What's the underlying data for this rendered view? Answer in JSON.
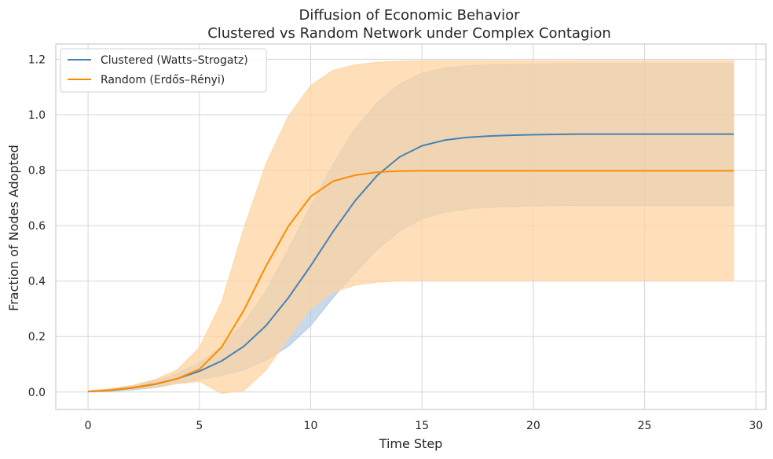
{
  "chart_data": {
    "type": "line",
    "title": "Diffusion of Economic Behavior",
    "subtitle": "Clustered vs Random Network under Complex Contagion",
    "xlabel": "Time Step",
    "ylabel": "Fraction of Nodes Adopted",
    "xlim": [
      -1.45,
      30.45
    ],
    "ylim": [
      -0.063,
      1.255
    ],
    "x_ticks": [
      "0",
      "5",
      "10",
      "15",
      "20",
      "25",
      "30"
    ],
    "y_ticks": [
      "0.0",
      "0.2",
      "0.4",
      "0.6",
      "0.8",
      "1.0",
      "1.2"
    ],
    "grid": true,
    "legend_position": "upper-left",
    "x": [
      0,
      1,
      2,
      3,
      4,
      5,
      6,
      7,
      8,
      9,
      10,
      11,
      12,
      13,
      14,
      15,
      16,
      17,
      18,
      19,
      20,
      21,
      22,
      23,
      24,
      25,
      26,
      27,
      28,
      29
    ],
    "series": [
      {
        "name": "Clustered (Watts–Strogatz)",
        "color": "#4682b4",
        "band_color": "#a9c5e1",
        "values": [
          0.002,
          0.006,
          0.015,
          0.028,
          0.048,
          0.075,
          0.112,
          0.165,
          0.24,
          0.34,
          0.455,
          0.578,
          0.69,
          0.782,
          0.848,
          0.888,
          0.908,
          0.918,
          0.923,
          0.926,
          0.928,
          0.929,
          0.93,
          0.93,
          0.93,
          0.93,
          0.93,
          0.93,
          0.93,
          0.93
        ],
        "lower": [
          0.0,
          0.002,
          0.008,
          0.016,
          0.03,
          0.045,
          0.06,
          0.08,
          0.115,
          0.165,
          0.24,
          0.34,
          0.43,
          0.515,
          0.58,
          0.625,
          0.648,
          0.66,
          0.666,
          0.669,
          0.671,
          0.672,
          0.673,
          0.673,
          0.673,
          0.673,
          0.673,
          0.673,
          0.673,
          0.673
        ],
        "upper": [
          0.004,
          0.01,
          0.022,
          0.04,
          0.066,
          0.105,
          0.165,
          0.25,
          0.365,
          0.515,
          0.67,
          0.82,
          0.95,
          1.045,
          1.11,
          1.15,
          1.168,
          1.176,
          1.18,
          1.182,
          1.183,
          1.184,
          1.185,
          1.185,
          1.185,
          1.185,
          1.185,
          1.185,
          1.185,
          1.185
        ]
      },
      {
        "name": "Random (Erdős–Rényi)",
        "color": "#ff8c00",
        "band_color": "#ffd39e",
        "values": [
          0.002,
          0.007,
          0.016,
          0.029,
          0.048,
          0.082,
          0.162,
          0.295,
          0.455,
          0.598,
          0.705,
          0.76,
          0.782,
          0.793,
          0.797,
          0.798,
          0.798,
          0.798,
          0.798,
          0.798,
          0.798,
          0.798,
          0.798,
          0.798,
          0.798,
          0.798,
          0.798,
          0.798,
          0.798,
          0.798
        ],
        "lower": [
          0.0,
          0.003,
          0.01,
          0.018,
          0.03,
          0.038,
          -0.005,
          0.005,
          0.08,
          0.195,
          0.3,
          0.36,
          0.385,
          0.396,
          0.4,
          0.401,
          0.401,
          0.401,
          0.401,
          0.401,
          0.401,
          0.401,
          0.401,
          0.401,
          0.401,
          0.401,
          0.401,
          0.401,
          0.401,
          0.401
        ],
        "upper": [
          0.004,
          0.012,
          0.024,
          0.045,
          0.08,
          0.16,
          0.325,
          0.59,
          0.825,
          0.995,
          1.105,
          1.16,
          1.18,
          1.189,
          1.193,
          1.195,
          1.195,
          1.195,
          1.195,
          1.195,
          1.195,
          1.195,
          1.195,
          1.195,
          1.195,
          1.195,
          1.195,
          1.195,
          1.195,
          1.195
        ]
      }
    ]
  }
}
